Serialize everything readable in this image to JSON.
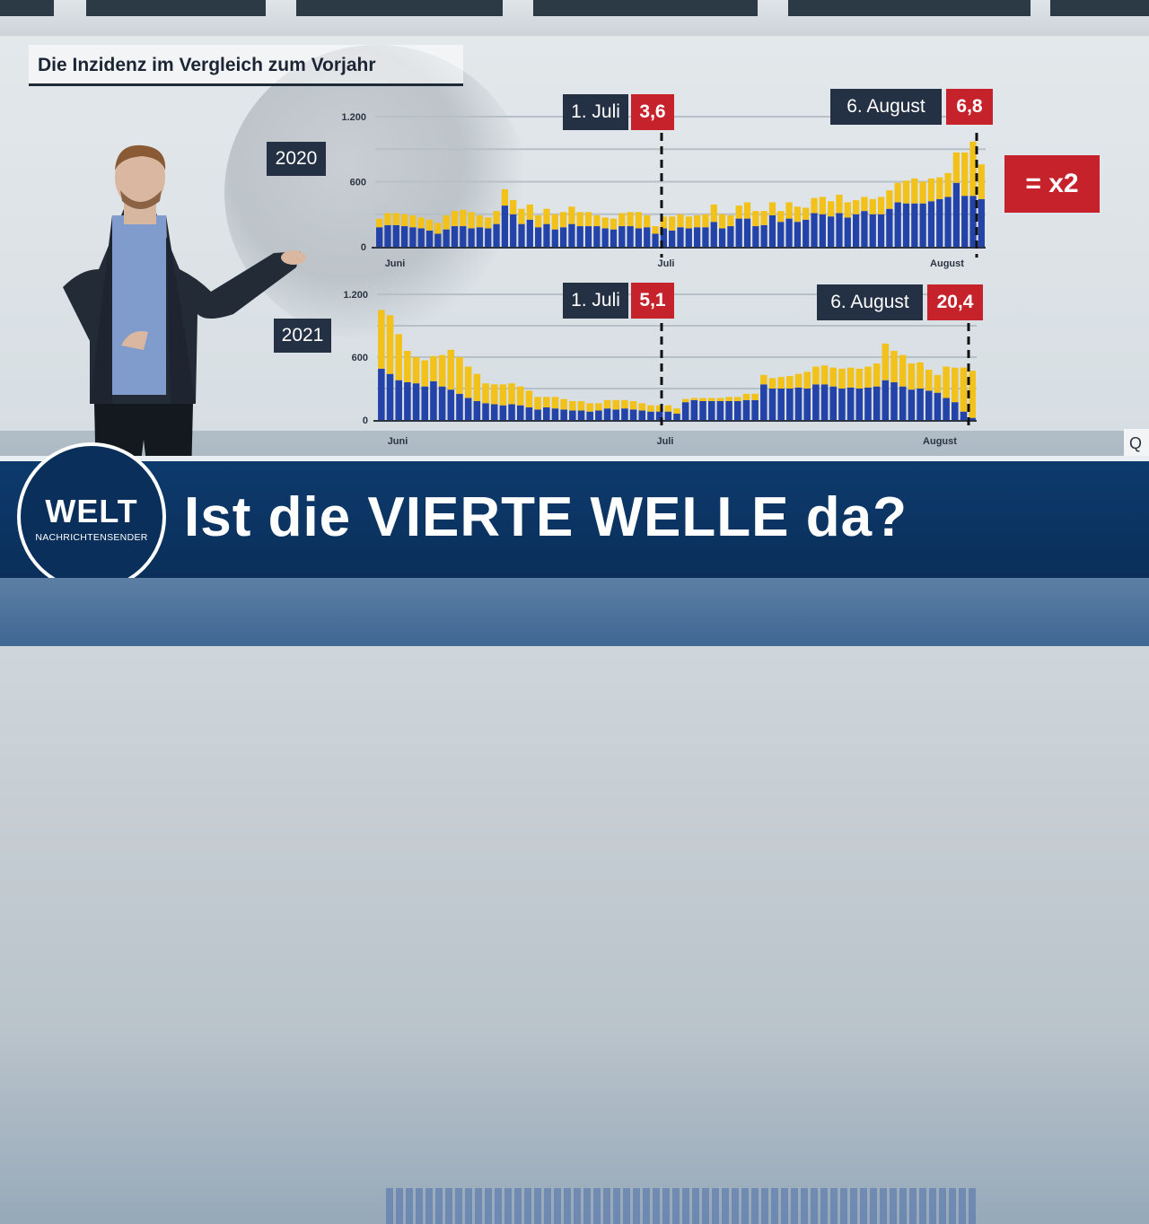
{
  "colors": {
    "blue": "#2443a8",
    "yellow": "#f2c21b",
    "red": "#c5222c",
    "navy": "#243044",
    "welt": "#0a2f5a"
  },
  "header": {
    "title": "Die Inzidenz im Vergleich zum Vorjahr"
  },
  "factor_badge": "= x2",
  "edge_tag": "Q",
  "lower_third": {
    "headline": "Ist die VIERTE WELLE da?"
  },
  "logo": {
    "word": "WELT",
    "sub": "NACHRICHTENSENDER",
    "icon": "welt-logo-icon"
  },
  "chart_data": [
    {
      "type": "bar",
      "stacked": true,
      "title": "2020",
      "y_ticks": [
        "1.200",
        "600",
        "0"
      ],
      "ylim": [
        0,
        1200
      ],
      "x_labels": [
        "Juni",
        "Juli",
        "August"
      ],
      "grid": true,
      "markers": [
        {
          "date": "1. Juli",
          "value": "3,6"
        },
        {
          "date": "6. August",
          "value": "6,8"
        }
      ],
      "series": [
        {
          "values": [
            180,
            200,
            200,
            190,
            180,
            170,
            150,
            120,
            160,
            190,
            190,
            170,
            180,
            170,
            210,
            380,
            300,
            210,
            250,
            180,
            210,
            160,
            180,
            210,
            190,
            190,
            190,
            170,
            160,
            190,
            190,
            170,
            180,
            120,
            170,
            150,
            180,
            170,
            180,
            180,
            230,
            170,
            190,
            260,
            260,
            190,
            200,
            290,
            230,
            260,
            230,
            250,
            310,
            300,
            280,
            310,
            270,
            300,
            330,
            300,
            300,
            350,
            410,
            400,
            400,
            400,
            420,
            440,
            460,
            590,
            470,
            470,
            440
          ]
        },
        {
          "values": [
            80,
            110,
            110,
            110,
            110,
            100,
            100,
            100,
            130,
            140,
            150,
            150,
            110,
            100,
            120,
            150,
            130,
            140,
            140,
            110,
            140,
            140,
            140,
            160,
            130,
            130,
            100,
            100,
            100,
            120,
            130,
            150,
            110,
            70,
            110,
            130,
            120,
            110,
            110,
            120,
            160,
            130,
            100,
            120,
            150,
            140,
            130,
            120,
            100,
            150,
            140,
            110,
            140,
            160,
            140,
            170,
            140,
            130,
            130,
            140,
            160,
            170,
            180,
            210,
            230,
            200,
            210,
            200,
            220,
            280,
            400,
            500,
            320
          ]
        }
      ]
    },
    {
      "type": "bar",
      "stacked": true,
      "title": "2021",
      "y_ticks": [
        "1.200",
        "600",
        "0"
      ],
      "ylim": [
        0,
        1200
      ],
      "x_labels": [
        "Juni",
        "Juli",
        "August"
      ],
      "grid": true,
      "markers": [
        {
          "date": "1. Juli",
          "value": "5,1"
        },
        {
          "date": "6. August",
          "value": "20,4"
        }
      ],
      "series": [
        {
          "values": [
            490,
            440,
            380,
            360,
            350,
            320,
            370,
            320,
            290,
            250,
            210,
            180,
            160,
            150,
            140,
            150,
            140,
            120,
            100,
            120,
            110,
            100,
            90,
            90,
            80,
            90,
            110,
            100,
            110,
            100,
            90,
            80,
            80,
            80,
            60,
            170,
            190,
            180,
            180,
            180,
            180,
            180,
            190,
            190,
            340,
            300,
            300,
            300,
            310,
            300,
            340,
            340,
            320,
            300,
            310,
            300,
            310,
            320,
            380,
            360,
            320,
            290,
            300,
            280,
            260,
            210,
            170,
            80,
            20
          ]
        },
        {
          "values": [
            560,
            560,
            440,
            300,
            250,
            250,
            240,
            300,
            380,
            350,
            300,
            260,
            190,
            190,
            200,
            200,
            180,
            160,
            120,
            100,
            110,
            100,
            90,
            90,
            80,
            70,
            80,
            90,
            80,
            80,
            70,
            60,
            60,
            60,
            50,
            30,
            20,
            30,
            30,
            30,
            40,
            40,
            60,
            60,
            90,
            100,
            110,
            120,
            130,
            160,
            170,
            180,
            180,
            190,
            190,
            190,
            200,
            220,
            350,
            300,
            300,
            250,
            250,
            200,
            170,
            300,
            330,
            420,
            450
          ]
        }
      ]
    }
  ]
}
